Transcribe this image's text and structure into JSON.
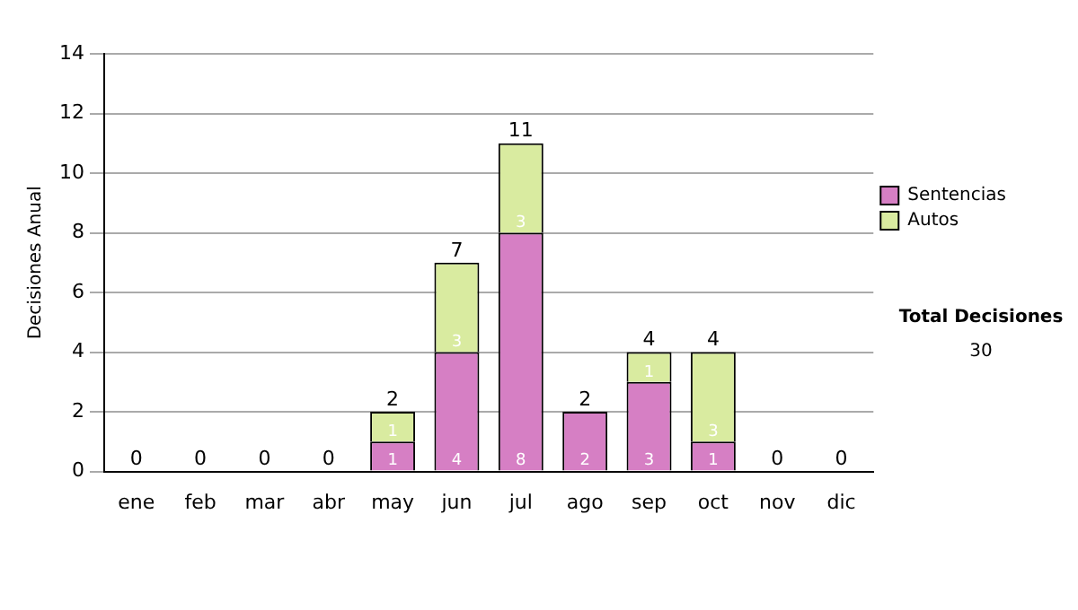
{
  "chart_data": {
    "type": "bar",
    "stacked": true,
    "ylabel": "Decisiones Anual",
    "categories": [
      "ene",
      "feb",
      "mar",
      "abr",
      "may",
      "jun",
      "jul",
      "ago",
      "sep",
      "oct",
      "nov",
      "dic"
    ],
    "series": [
      {
        "name": "Sentencias",
        "color": "#d67fc4",
        "values": [
          0,
          0,
          0,
          0,
          1,
          4,
          8,
          2,
          3,
          1,
          0,
          0
        ],
        "value_labels": [
          null,
          null,
          null,
          null,
          "1",
          "4",
          "8",
          "2",
          "3",
          "1",
          null,
          null
        ]
      },
      {
        "name": "Autos",
        "color": "#d9eba0",
        "values": [
          0,
          0,
          0,
          0,
          1,
          3,
          3,
          0,
          1,
          3,
          0,
          0
        ],
        "value_labels": [
          null,
          null,
          null,
          null,
          "1",
          "3",
          "3",
          null,
          "1",
          "3",
          null,
          null
        ]
      }
    ],
    "totals": [
      "0",
      "0",
      "0",
      "0",
      "2",
      "7",
      "11",
      "2",
      "4",
      "4",
      "0",
      "0"
    ],
    "ylim": [
      0,
      14
    ],
    "yticks": [
      0,
      2,
      4,
      6,
      8,
      10,
      12,
      14
    ],
    "grid": "y",
    "legend": "right",
    "annotations": [
      "Total Decisiones",
      "30"
    ]
  }
}
